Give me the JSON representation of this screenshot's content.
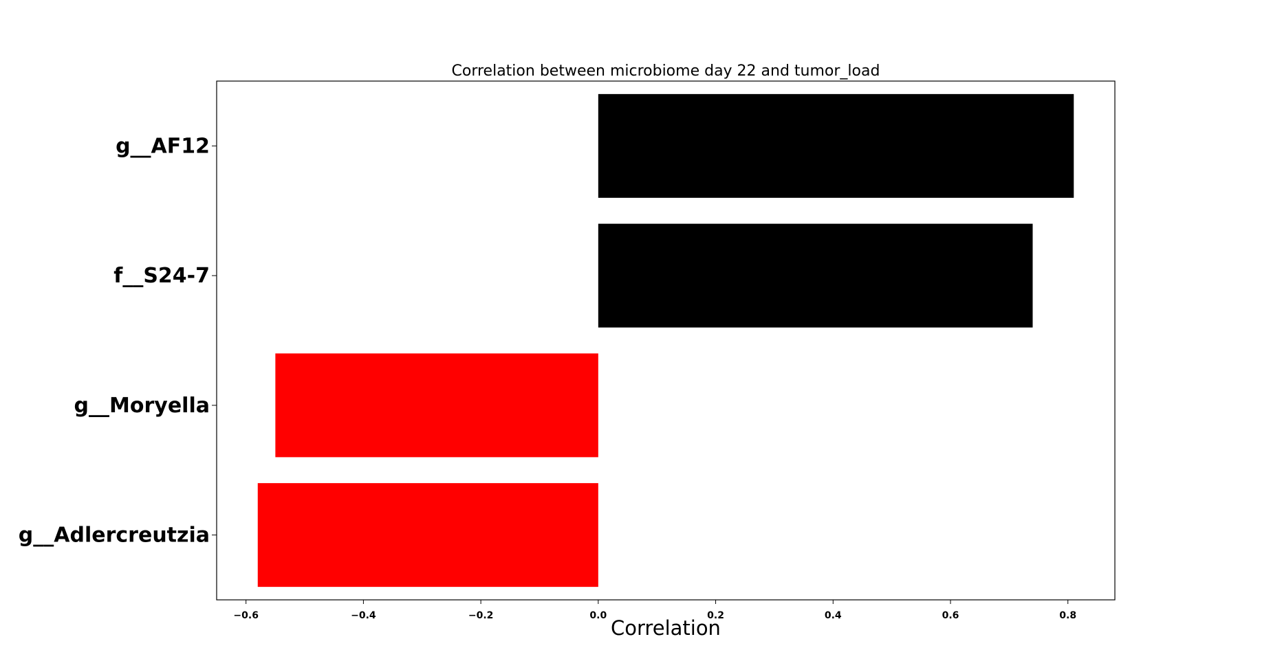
{
  "chart_data": {
    "type": "bar",
    "orientation": "horizontal",
    "title": "Correlation between microbiome day 22 and tumor_load",
    "xlabel": "Correlation",
    "ylabel": "",
    "categories": [
      "g__AF12",
      "f__S24-7",
      "g__Moryella",
      "g__Adlercreutzia"
    ],
    "values": [
      0.81,
      0.74,
      -0.55,
      -0.58
    ],
    "xlim": [
      -0.65,
      0.88
    ],
    "xticks": [
      -0.6,
      -0.4,
      -0.2,
      0.0,
      0.2,
      0.4,
      0.6,
      0.8
    ],
    "xtick_labels": [
      "−0.6",
      "−0.4",
      "−0.2",
      "0.0",
      "0.2",
      "0.4",
      "0.6",
      "0.8"
    ],
    "colors": {
      "positive": "#000000",
      "negative": "#ff0000"
    },
    "grid": false,
    "legend": "none"
  }
}
